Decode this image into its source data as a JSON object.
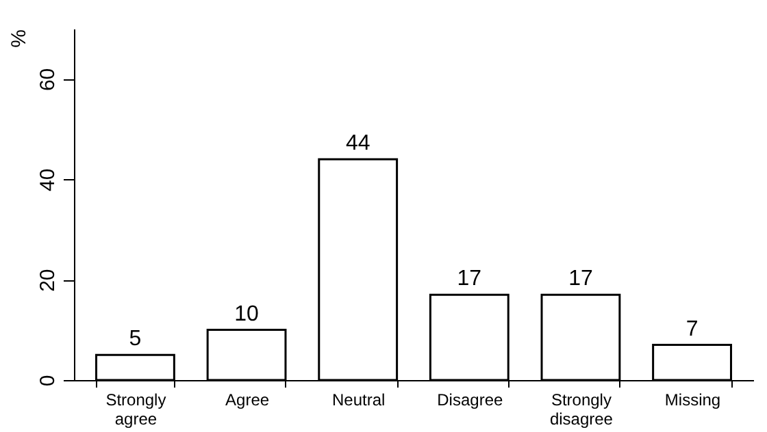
{
  "chart_data": {
    "type": "bar",
    "ylabel": "%",
    "categories": [
      "Strongly agree",
      "Agree",
      "Neutral",
      "Disagree",
      "Strongly disagree",
      "Missing"
    ],
    "values": [
      5,
      10,
      44,
      17,
      17,
      7
    ],
    "color": "#ffffff",
    "ylim": [
      0,
      70
    ],
    "yticks": [
      0,
      20,
      40,
      60
    ],
    "grid": false,
    "data_labels": true
  }
}
